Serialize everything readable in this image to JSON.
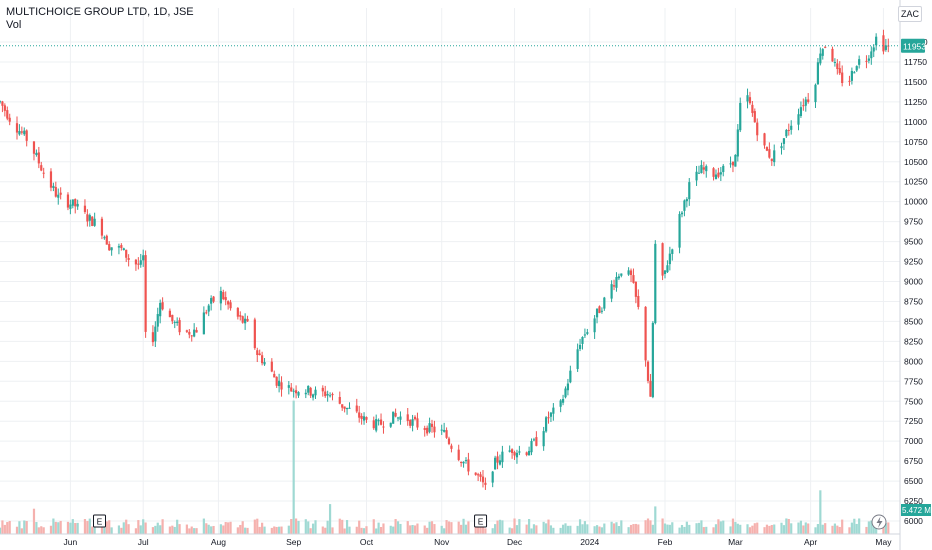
{
  "legend": {
    "title": "MULTICHOICE GROUP LTD, 1D, JSE",
    "volume_label": "Vol"
  },
  "currency": "ZAC",
  "last_price_label": "11953",
  "volume_label_value": "5.472 M",
  "colors": {
    "up": "#26a69a",
    "down": "#ef5350",
    "up_vol": "#9fd9d3",
    "down_vol": "#f5b1ae",
    "grid": "#eef0f3",
    "price_line": "#26a69a",
    "axis_text": "#131722"
  },
  "chart_data": {
    "type": "candlestick",
    "title": "MULTICHOICE GROUP LTD, 1D, JSE",
    "ylim": [
      5975,
      12200
    ],
    "y_ticks": [
      6000,
      6250,
      6500,
      6750,
      7000,
      7250,
      7500,
      7750,
      8000,
      8250,
      8500,
      8750,
      9000,
      9250,
      9500,
      9750,
      10000,
      10250,
      10500,
      10750,
      11000,
      11250,
      11500,
      11750,
      12000
    ],
    "x_ticks": [
      {
        "day": 15,
        "label": "Jun"
      },
      {
        "day": 45,
        "label": "Jul"
      },
      {
        "day": 76,
        "label": "Aug"
      },
      {
        "day": 107,
        "label": "Sep"
      },
      {
        "day": 137,
        "label": "Oct"
      },
      {
        "day": 168,
        "label": "Nov"
      },
      {
        "day": 198,
        "label": "Dec"
      },
      {
        "day": 229,
        "label": "2024"
      },
      {
        "day": 260,
        "label": "Feb"
      },
      {
        "day": 289,
        "label": "Mar"
      },
      {
        "day": 320,
        "label": "Apr"
      },
      {
        "day": 350,
        "label": "May"
      }
    ],
    "day_range": [
      -14,
      356
    ],
    "earnings_markers": [
      {
        "day": 27,
        "label": "E"
      },
      {
        "day": 184,
        "label": "E"
      }
    ],
    "anchors": [
      [
        -14,
        11250
      ],
      [
        -9,
        11000
      ],
      [
        -2,
        10750
      ],
      [
        5,
        10300
      ],
      [
        10,
        10050
      ],
      [
        17,
        9950
      ],
      [
        22,
        9800
      ],
      [
        27,
        9700
      ],
      [
        31,
        9450
      ],
      [
        36,
        9400
      ],
      [
        40,
        9250
      ],
      [
        44,
        9200
      ],
      [
        45,
        9300
      ],
      [
        46,
        8300
      ],
      [
        48,
        8150
      ],
      [
        52,
        8750
      ],
      [
        57,
        8500
      ],
      [
        62,
        8350
      ],
      [
        67,
        8400
      ],
      [
        72,
        8700
      ],
      [
        77,
        8850
      ],
      [
        82,
        8600
      ],
      [
        88,
        8450
      ],
      [
        92,
        8100
      ],
      [
        96,
        7950
      ],
      [
        100,
        7750
      ],
      [
        106,
        7650
      ],
      [
        111,
        7650
      ],
      [
        116,
        7600
      ],
      [
        121,
        7600
      ],
      [
        127,
        7450
      ],
      [
        132,
        7350
      ],
      [
        137,
        7250
      ],
      [
        142,
        7200
      ],
      [
        147,
        7300
      ],
      [
        153,
        7300
      ],
      [
        158,
        7200
      ],
      [
        164,
        7150
      ],
      [
        169,
        7100
      ],
      [
        173,
        6900
      ],
      [
        178,
        6700
      ],
      [
        183,
        6550
      ],
      [
        186,
        6400
      ],
      [
        188,
        6650
      ],
      [
        192,
        6800
      ],
      [
        197,
        6900
      ],
      [
        202,
        6850
      ],
      [
        207,
        7000
      ],
      [
        212,
        7300
      ],
      [
        217,
        7450
      ],
      [
        221,
        7850
      ],
      [
        225,
        8250
      ],
      [
        229,
        8450
      ],
      [
        234,
        8700
      ],
      [
        238,
        8950
      ],
      [
        242,
        9150
      ],
      [
        246,
        9050
      ],
      [
        249,
        8650
      ],
      [
        252,
        8050
      ],
      [
        254,
        7500
      ],
      [
        256,
        9450
      ],
      [
        258,
        8900
      ],
      [
        262,
        9350
      ],
      [
        266,
        9800
      ],
      [
        270,
        10200
      ],
      [
        275,
        10400
      ],
      [
        280,
        10350
      ],
      [
        284,
        10400
      ],
      [
        289,
        10550
      ],
      [
        292,
        11500
      ],
      [
        296,
        11100
      ],
      [
        300,
        10700
      ],
      [
        304,
        10550
      ],
      [
        309,
        10800
      ],
      [
        313,
        11050
      ],
      [
        317,
        11250
      ],
      [
        321,
        11350
      ],
      [
        324,
        11900
      ],
      [
        327,
        12000
      ],
      [
        331,
        11600
      ],
      [
        335,
        11450
      ],
      [
        339,
        11750
      ],
      [
        343,
        11800
      ],
      [
        347,
        12050
      ],
      [
        350,
        11950
      ],
      [
        352,
        11953
      ]
    ],
    "volume_spikes": [
      {
        "day": 0,
        "rel": 0.55
      },
      {
        "day": 45,
        "rel": 0.32
      },
      {
        "day": 107,
        "rel": 2.9
      },
      {
        "day": 122,
        "rel": 0.65
      },
      {
        "day": 256,
        "rel": 0.6
      },
      {
        "day": 324,
        "rel": 0.95
      }
    ],
    "last_close": 11953
  }
}
